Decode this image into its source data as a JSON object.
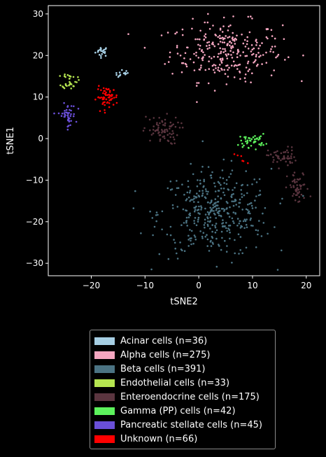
{
  "chart_data": {
    "type": "scatter",
    "xlabel": "tSNE2",
    "ylabel": "tSNE1",
    "xlim": [
      -28,
      22.5
    ],
    "ylim": [
      -33,
      32
    ],
    "xticks": [
      -20,
      -10,
      0,
      10,
      20
    ],
    "yticks": [
      -30,
      -20,
      -10,
      0,
      10,
      20,
      30
    ],
    "grid": false,
    "legend_position": "below",
    "series": [
      {
        "name": "Acinar cells (n=36)",
        "count": 36,
        "color": "#a6cee3",
        "clusters": [
          {
            "cx": -18,
            "cy": 21,
            "sx": 0.6,
            "sy": 0.6,
            "n": 22
          },
          {
            "cx": -14,
            "cy": 15.5,
            "sx": 0.8,
            "sy": 0.5,
            "n": 14
          }
        ]
      },
      {
        "name": "Alpha cells (n=275)",
        "count": 275,
        "color": "#f4a6c0",
        "clusters": [
          {
            "cx": 5,
            "cy": 21,
            "sx": 5.2,
            "sy": 3.6,
            "n": 275
          }
        ]
      },
      {
        "name": "Beta cells (n=391)",
        "count": 391,
        "color": "#4b7383",
        "clusters": [
          {
            "cx": 3,
            "cy": -18,
            "sx": 5.2,
            "sy": 5.3,
            "n": 391
          }
        ]
      },
      {
        "name": "Endothelial cells (n=33)",
        "count": 33,
        "color": "#b5e550",
        "clusters": [
          {
            "cx": -24,
            "cy": 14,
            "sx": 0.7,
            "sy": 1.0,
            "n": 33
          }
        ]
      },
      {
        "name": "Enteroendocrine cells (n=175)",
        "count": 175,
        "color": "#5a353f",
        "clusters": [
          {
            "cx": -7,
            "cy": 2,
            "sx": 1.7,
            "sy": 1.7,
            "n": 75
          },
          {
            "cx": 15.5,
            "cy": -4.5,
            "sx": 1.3,
            "sy": 1.2,
            "n": 50
          },
          {
            "cx": 18.5,
            "cy": -12,
            "sx": 1.0,
            "sy": 2.0,
            "n": 50
          }
        ]
      },
      {
        "name": "Gamma (PP) cells (n=42)",
        "count": 42,
        "color": "#5cf25c",
        "clusters": [
          {
            "cx": 10,
            "cy": -0.5,
            "sx": 1.2,
            "sy": 0.8,
            "n": 42
          }
        ]
      },
      {
        "name": "Pancreatic stellate cells (n=45)",
        "count": 45,
        "color": "#6a4fd8",
        "clusters": [
          {
            "cx": -24.5,
            "cy": 5.5,
            "sx": 0.8,
            "sy": 1.4,
            "n": 45
          }
        ]
      },
      {
        "name": "Unknown (n=66)",
        "count": 66,
        "color": "#ff0000",
        "clusters": [
          {
            "cx": -17,
            "cy": 10,
            "sx": 1.0,
            "sy": 1.2,
            "n": 60
          },
          {
            "cx": 8,
            "cy": -5,
            "sx": 1.0,
            "sy": 0.6,
            "n": 6
          }
        ]
      }
    ]
  },
  "legend": {
    "items": [
      {
        "label": "Acinar cells (n=36)",
        "color": "#a6cee3"
      },
      {
        "label": "Alpha cells (n=275)",
        "color": "#f4a6c0"
      },
      {
        "label": "Beta cells (n=391)",
        "color": "#4b7383"
      },
      {
        "label": "Endothelial cells (n=33)",
        "color": "#b5e550"
      },
      {
        "label": "Enteroendocrine cells (n=175)",
        "color": "#5a353f"
      },
      {
        "label": "Gamma (PP) cells (n=42)",
        "color": "#5cf25c"
      },
      {
        "label": "Pancreatic stellate cells (n=45)",
        "color": "#6a4fd8"
      },
      {
        "label": "Unknown (n=66)",
        "color": "#ff0000"
      }
    ]
  }
}
